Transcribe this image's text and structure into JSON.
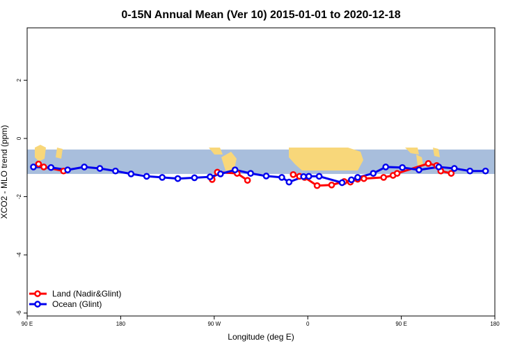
{
  "chart_data": {
    "type": "line",
    "title": "0-15N Annual Mean (Ver 10)   2015-01-01 to 2020-12-18",
    "xlabel": "Longitude (deg E)",
    "ylabel": "XCO2 - MLO trend (ppm)",
    "xlim": [
      90,
      540
    ],
    "ylim": [
      -6.1,
      3.8
    ],
    "x_ticks": [
      90,
      180,
      270,
      360,
      450,
      540
    ],
    "x_tick_labels": [
      "90 E",
      "180",
      "90 W",
      "0",
      "90 E",
      "180"
    ],
    "y_ticks": [
      -6,
      -4,
      -2,
      0,
      2
    ],
    "y_tick_labels": [
      "-6",
      "-4",
      "-2",
      "0",
      "2"
    ],
    "grid": false,
    "legend_position": "bottom-left",
    "map_band": {
      "y_top": -0.38,
      "y_bottom": -1.22,
      "ocean_color": "#a8bedc",
      "land_color": "#f8d77a"
    },
    "series": [
      {
        "name": "Land (Nadir&Glint)",
        "color": "#ff0000",
        "segments": [
          {
            "x": [
              101,
              106,
              125
            ],
            "y": [
              -0.88,
              -0.98,
              -1.12
            ]
          },
          {
            "x": [
              268,
              273,
              292,
              302
            ],
            "y": [
              -1.41,
              -1.16,
              -1.2,
              -1.44
            ]
          },
          {
            "x": [
              346,
              352,
              357,
              369,
              383,
              395,
              401,
              408,
              414,
              433,
              442,
              446,
              476,
              484,
              488,
              498
            ],
            "y": [
              -1.24,
              -1.3,
              -1.34,
              -1.62,
              -1.6,
              -1.48,
              -1.5,
              -1.4,
              -1.38,
              -1.34,
              -1.27,
              -1.2,
              -0.86,
              -0.93,
              -1.12,
              -1.2
            ]
          }
        ]
      },
      {
        "name": "Ocean (Glint)",
        "color": "#0000ee",
        "segments": [
          {
            "x": [
              96,
              113,
              129,
              145,
              160,
              175,
              190,
              205,
              220,
              235,
              251,
              266,
              276,
              290,
              305,
              320,
              335,
              342,
              356,
              361,
              371,
              393,
              402,
              408,
              423,
              435,
              451,
              467,
              486,
              501,
              516,
              531
            ],
            "y": [
              -0.98,
              -1.0,
              -1.08,
              -0.98,
              -1.03,
              -1.12,
              -1.22,
              -1.3,
              -1.34,
              -1.38,
              -1.35,
              -1.32,
              -1.22,
              -1.08,
              -1.2,
              -1.29,
              -1.34,
              -1.5,
              -1.31,
              -1.3,
              -1.3,
              -1.52,
              -1.42,
              -1.34,
              -1.2,
              -0.98,
              -1.0,
              -1.08,
              -0.98,
              -1.03,
              -1.12,
              -1.12
            ]
          }
        ]
      }
    ]
  }
}
